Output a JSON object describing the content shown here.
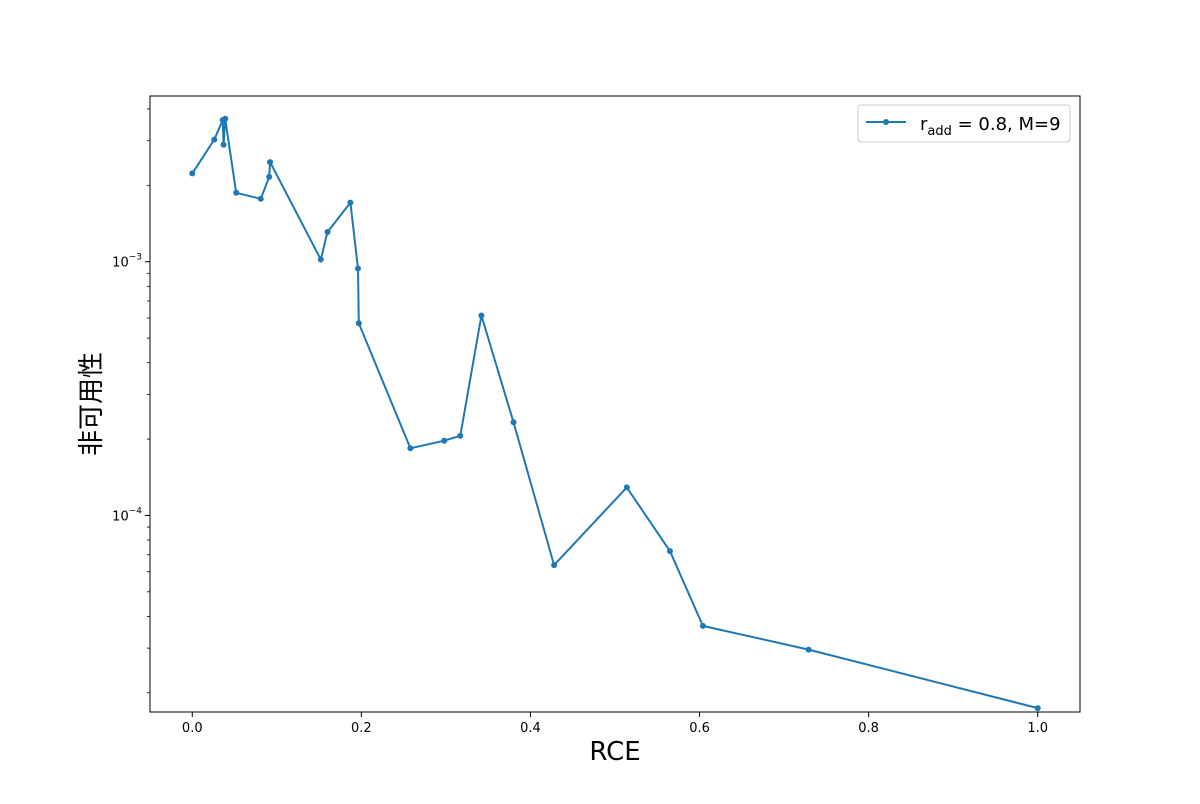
{
  "chart_data": {
    "type": "line",
    "title": "",
    "xlabel": "RCE",
    "ylabel": "非可用性",
    "xlim": [
      -0.05,
      1.05
    ],
    "ylim": [
      1.68e-05,
      0.0045
    ],
    "yscale": "log",
    "x_ticks": [
      0.0,
      0.2,
      0.4,
      0.6,
      0.8,
      1.0
    ],
    "x_tick_labels": [
      "0.0",
      "0.2",
      "0.4",
      "0.6",
      "0.8",
      "1.0"
    ],
    "y_major_ticks": [
      0.001,
      0.0001
    ],
    "y_major_tick_labels": [
      {
        "base": "10",
        "exp": "−3"
      },
      {
        "base": "10",
        "exp": "−4"
      }
    ],
    "grid": false,
    "legend": {
      "position": "upper right",
      "entries": [
        {
          "name_main": "r",
          "name_sub": "add",
          "name_rest": " = 0.8, M=9"
        }
      ]
    },
    "series": [
      {
        "color": "#1f77b4",
        "marker": "circle",
        "x": [
          0.0,
          0.026,
          0.036,
          0.037,
          0.039,
          0.052,
          0.081,
          0.091,
          0.092,
          0.152,
          0.16,
          0.187,
          0.196,
          0.197,
          0.258,
          0.298,
          0.317,
          0.342,
          0.38,
          0.428,
          0.514,
          0.565,
          0.604,
          0.729,
          1.0
        ],
        "y": [
          0.00223,
          0.00303,
          0.00362,
          0.00289,
          0.00366,
          0.00187,
          0.00177,
          0.00216,
          0.00247,
          0.00102,
          0.00131,
          0.00171,
          0.00094,
          0.000572,
          0.000184,
          0.000197,
          0.000206,
          0.000614,
          0.000233,
          6.37e-05,
          0.000129,
          7.23e-05,
          3.67e-05,
          2.96e-05,
          1.74e-05
        ]
      }
    ]
  }
}
